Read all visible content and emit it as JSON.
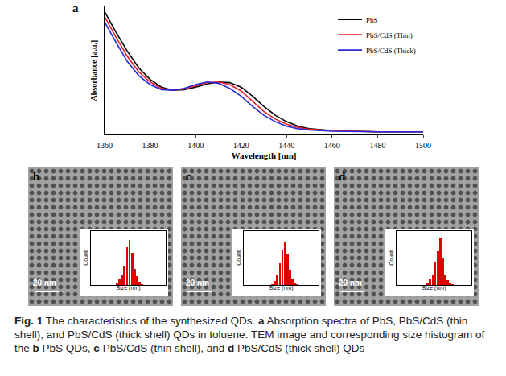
{
  "chart_data": [
    {
      "type": "line",
      "letter": "a",
      "x_label": "Wavelength [nm]",
      "y_label": "Absorbance [a.u.]",
      "x": [
        1360,
        1365,
        1370,
        1375,
        1380,
        1385,
        1390,
        1395,
        1400,
        1405,
        1410,
        1415,
        1420,
        1425,
        1430,
        1435,
        1440,
        1445,
        1450,
        1460,
        1480,
        1500
      ],
      "series": [
        {
          "name": "PbS",
          "color": "#000000",
          "values": [
            0.96,
            0.8,
            0.65,
            0.52,
            0.43,
            0.37,
            0.345,
            0.35,
            0.37,
            0.395,
            0.41,
            0.405,
            0.37,
            0.3,
            0.22,
            0.15,
            0.1,
            0.065,
            0.045,
            0.03,
            0.02,
            0.02
          ]
        },
        {
          "name": "PbS/CdS (Thin)",
          "color": "#e8202a",
          "values": [
            0.92,
            0.76,
            0.61,
            0.49,
            0.41,
            0.36,
            0.345,
            0.355,
            0.38,
            0.405,
            0.41,
            0.39,
            0.34,
            0.26,
            0.18,
            0.12,
            0.08,
            0.055,
            0.04,
            0.03,
            0.02,
            0.02
          ]
        },
        {
          "name": "PbS/CdS (Thick)",
          "color": "#2a2adc",
          "values": [
            0.88,
            0.72,
            0.57,
            0.46,
            0.39,
            0.35,
            0.345,
            0.36,
            0.39,
            0.41,
            0.4,
            0.36,
            0.3,
            0.22,
            0.15,
            0.1,
            0.065,
            0.045,
            0.035,
            0.025,
            0.02,
            0.02
          ]
        }
      ],
      "xlim": [
        1360,
        1500
      ],
      "xticks": [
        1360,
        1380,
        1400,
        1420,
        1440,
        1460,
        1480,
        1500
      ],
      "ylim": [
        0,
        1
      ],
      "tick_labels": "x",
      "legend": "top right"
    },
    {
      "type": "histogram",
      "letter": "b",
      "scale_bar": "20 nm",
      "x_label": "Size (nm)",
      "y_label": "Count",
      "bins": [
        4.0,
        4.2,
        4.4,
        4.6,
        4.8,
        5.0,
        5.2,
        5.4,
        5.6,
        5.8,
        6.0,
        6.2
      ],
      "counts": [
        2,
        5,
        10,
        18,
        35,
        42,
        30,
        15,
        8,
        3,
        1
      ],
      "color": "#e00000",
      "xlim": [
        2,
        8
      ],
      "ylim": [
        0,
        50
      ],
      "tick_labels": false
    },
    {
      "type": "histogram",
      "letter": "c",
      "scale_bar": "20 nm",
      "x_label": "Size (nm)",
      "y_label": "Count",
      "bins": [
        4.2,
        4.4,
        4.6,
        4.8,
        5.0,
        5.2,
        5.4,
        5.6,
        5.8,
        6.0,
        6.2,
        6.4
      ],
      "counts": [
        1,
        4,
        9,
        20,
        33,
        40,
        28,
        14,
        6,
        2,
        1
      ],
      "color": "#e00000",
      "xlim": [
        2,
        8
      ],
      "ylim": [
        0,
        50
      ],
      "tick_labels": false
    },
    {
      "type": "histogram",
      "letter": "d",
      "scale_bar": "20 nm",
      "x_label": "Size (nm)",
      "y_label": "Count",
      "bins": [
        4.4,
        4.6,
        4.8,
        5.0,
        5.2,
        5.4,
        5.6,
        5.8,
        6.0,
        6.2,
        6.4,
        6.6
      ],
      "counts": [
        2,
        6,
        12,
        25,
        38,
        52,
        30,
        12,
        5,
        2,
        1
      ],
      "color": "#e00000",
      "xlim": [
        2,
        8
      ],
      "ylim": [
        0,
        60
      ],
      "tick_labels": false
    }
  ],
  "caption": {
    "label": "Fig. 1",
    "title": "The characteristics of the synthesized QDs.",
    "parts": [
      {
        "letter": "a",
        "text": "Absorption spectra of PbS, PbS/CdS (thin shell), and PbS/CdS (thick shell) QDs in toluene. TEM image and corresponding size histogram of the"
      },
      {
        "letter": "b",
        "text": "PbS QDs,"
      },
      {
        "letter": "c",
        "text": "PbS/CdS (thin shell), and"
      },
      {
        "letter": "d",
        "text": "PbS/CdS (thick shell) QDs"
      }
    ]
  }
}
